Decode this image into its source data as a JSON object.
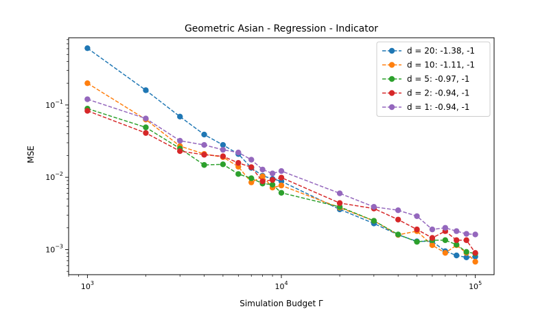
{
  "chart_data": {
    "type": "line",
    "title": "Geometric Asian - Regression - Indicator",
    "xlabel": "Simulation Budget Γ",
    "ylabel": "MSE",
    "xscale": "log",
    "yscale": "log",
    "xlim": [
      800,
      125000
    ],
    "ylim": [
      0.00045,
      0.85
    ],
    "grid": false,
    "legend_position": "top-right",
    "x_ticks": [
      {
        "value": 1000,
        "base": "10",
        "exp": "3"
      },
      {
        "value": 10000,
        "base": "10",
        "exp": "4"
      },
      {
        "value": 100000,
        "base": "10",
        "exp": "5"
      }
    ],
    "y_ticks": [
      {
        "value": 0.001,
        "base": "10",
        "exp": "−3"
      },
      {
        "value": 0.01,
        "base": "10",
        "exp": "−2"
      },
      {
        "value": 0.1,
        "base": "10",
        "exp": "−1"
      }
    ],
    "x": [
      1000,
      2000,
      3000,
      4000,
      5000,
      6000,
      7000,
      8000,
      9000,
      10000,
      20000,
      30000,
      40000,
      50000,
      60000,
      70000,
      80000,
      90000,
      100000
    ],
    "series": [
      {
        "name": "d = 20: -1.38, -1",
        "color": "#1f77b4",
        "values": [
          0.61,
          0.16,
          0.069,
          0.039,
          0.028,
          0.021,
          0.0135,
          0.0105,
          0.0095,
          0.0088,
          0.0036,
          0.0023,
          0.0016,
          0.0013,
          0.0013,
          0.00095,
          0.00083,
          0.00078,
          0.0008
        ]
      },
      {
        "name": "d = 10: -1.11, -1",
        "color": "#ff7f0e",
        "values": [
          0.2,
          0.063,
          0.027,
          0.021,
          0.019,
          0.014,
          0.0085,
          0.0103,
          0.0072,
          0.0077,
          0.0038,
          0.0025,
          0.0016,
          0.0018,
          0.00115,
          0.0009,
          0.00115,
          0.0009,
          0.00068
        ]
      },
      {
        "name": "d = 5: -0.97, -1",
        "color": "#2ca02c",
        "values": [
          0.089,
          0.049,
          0.025,
          0.0148,
          0.0151,
          0.0111,
          0.0097,
          0.0082,
          0.0079,
          0.0061,
          0.0039,
          0.0025,
          0.00162,
          0.00128,
          0.00135,
          0.00135,
          0.00117,
          0.00093,
          0.00088
        ]
      },
      {
        "name": "d = 2: -0.94, -1",
        "color": "#d62728",
        "values": [
          0.083,
          0.041,
          0.023,
          0.0205,
          0.0195,
          0.0158,
          0.0138,
          0.0088,
          0.0092,
          0.0099,
          0.0044,
          0.0037,
          0.0026,
          0.0019,
          0.00145,
          0.0018,
          0.00135,
          0.00135,
          0.0009
        ]
      },
      {
        "name": "d = 1: -0.94, -1",
        "color": "#9467bd",
        "values": [
          0.12,
          0.065,
          0.032,
          0.028,
          0.024,
          0.022,
          0.0175,
          0.0128,
          0.0113,
          0.0122,
          0.006,
          0.0039,
          0.0035,
          0.0029,
          0.0019,
          0.002,
          0.0018,
          0.00165,
          0.00162
        ]
      }
    ]
  }
}
